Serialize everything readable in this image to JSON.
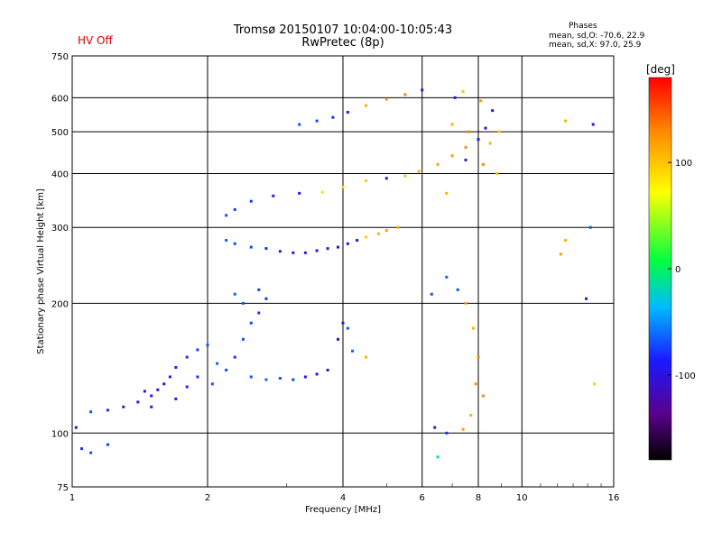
{
  "header": {
    "hv_status": "HV Off",
    "title_line1": "Tromsø 20150107 10:04:00-10:05:43",
    "title_line2": "RwPretec (8p)",
    "phases_title": "Phases",
    "phases_o": "mean, sd,O: -70.6, 22.9",
    "phases_x": "mean, sd,X:  97.0, 25.9"
  },
  "colorbar": {
    "unit": "[deg]",
    "ticks": [
      "100",
      "0",
      "-100"
    ],
    "tick_values": [
      100,
      0,
      -100
    ],
    "range": [
      -180,
      180
    ],
    "colors": [
      "#000000",
      "#5a008c",
      "#1a1aff",
      "#00bbff",
      "#00ff40",
      "#ffff00",
      "#ff8800",
      "#ff0000"
    ]
  },
  "chart_data": {
    "type": "scatter",
    "title": "Tromsø 20150107 10:04:00-10:05:43",
    "subtitle": "RwPretec (8p)",
    "xlabel": "Frequency [MHz]",
    "ylabel": "Stationary phase Virtual Height [km]",
    "xscale": "log",
    "yscale": "log",
    "xlim": [
      1,
      16
    ],
    "ylim": [
      75,
      750
    ],
    "xticks": [
      1,
      2,
      4,
      6,
      8,
      10,
      16
    ],
    "xtick_labels": [
      "1",
      "2",
      "4",
      "6",
      "8",
      "10",
      "16"
    ],
    "yticks": [
      75,
      100,
      200,
      300,
      400,
      500,
      600,
      750
    ],
    "ytick_labels": [
      "75",
      "100",
      "200",
      "300",
      "400",
      "500",
      "600",
      "750"
    ],
    "grid": true,
    "color_variable": "phase [deg]",
    "series": [
      {
        "points": [
          [
            1.02,
            103,
            -80
          ],
          [
            1.05,
            92,
            -70
          ],
          [
            1.1,
            90,
            -60
          ],
          [
            1.2,
            94,
            -65
          ],
          [
            1.1,
            112,
            -60
          ],
          [
            1.2,
            113,
            -70
          ],
          [
            1.3,
            115,
            -75
          ],
          [
            1.4,
            118,
            -80
          ],
          [
            1.5,
            122,
            -90
          ],
          [
            1.55,
            126,
            -95
          ],
          [
            1.6,
            130,
            -85
          ],
          [
            1.65,
            135,
            -80
          ],
          [
            1.7,
            142,
            -75
          ],
          [
            1.8,
            150,
            -70
          ],
          [
            1.9,
            156,
            -65
          ],
          [
            2.0,
            160,
            -60
          ],
          [
            1.45,
            125,
            -100
          ],
          [
            1.5,
            115,
            -90
          ],
          [
            1.7,
            120,
            -85
          ],
          [
            1.8,
            128,
            -80
          ],
          [
            1.9,
            135,
            -70
          ],
          [
            2.05,
            130,
            -60
          ],
          [
            2.1,
            145,
            -55
          ],
          [
            2.2,
            140,
            -60
          ],
          [
            2.3,
            150,
            -70
          ],
          [
            2.4,
            165,
            -60
          ],
          [
            2.5,
            180,
            -65
          ],
          [
            2.6,
            190,
            -70
          ],
          [
            2.3,
            210,
            -55
          ],
          [
            2.4,
            200,
            -60
          ],
          [
            2.6,
            215,
            -65
          ],
          [
            2.7,
            205,
            -70
          ],
          [
            2.5,
            135,
            -60
          ],
          [
            2.7,
            133,
            -55
          ],
          [
            2.9,
            134,
            -60
          ],
          [
            3.1,
            133,
            -65
          ],
          [
            3.3,
            135,
            -80
          ],
          [
            3.5,
            137,
            -90
          ],
          [
            3.7,
            140,
            -95
          ],
          [
            3.9,
            165,
            -100
          ],
          [
            4.0,
            180,
            -95
          ],
          [
            4.1,
            175,
            -60
          ],
          [
            4.2,
            155,
            -55
          ],
          [
            4.5,
            150,
            110
          ],
          [
            2.2,
            280,
            -55
          ],
          [
            2.3,
            275,
            -60
          ],
          [
            2.5,
            270,
            -65
          ],
          [
            2.7,
            268,
            -70
          ],
          [
            2.9,
            264,
            -75
          ],
          [
            3.1,
            262,
            -80
          ],
          [
            3.3,
            262,
            -85
          ],
          [
            3.5,
            265,
            -90
          ],
          [
            3.7,
            268,
            -95
          ],
          [
            3.9,
            270,
            -100
          ],
          [
            4.1,
            275,
            -95
          ],
          [
            4.3,
            280,
            -90
          ],
          [
            4.5,
            285,
            100
          ],
          [
            4.8,
            290,
            110
          ],
          [
            5.0,
            295,
            120
          ],
          [
            5.3,
            300,
            115
          ],
          [
            2.2,
            320,
            -60
          ],
          [
            2.3,
            330,
            -65
          ],
          [
            2.5,
            345,
            -70
          ],
          [
            2.8,
            355,
            -80
          ],
          [
            3.2,
            360,
            -85
          ],
          [
            3.6,
            362,
            90
          ],
          [
            4.0,
            372,
            95
          ],
          [
            4.5,
            385,
            100
          ],
          [
            5.0,
            390,
            -90
          ],
          [
            5.5,
            395,
            105
          ],
          [
            5.9,
            405,
            110
          ],
          [
            6.5,
            420,
            115
          ],
          [
            7.0,
            440,
            120
          ],
          [
            7.5,
            460,
            125
          ],
          [
            8.0,
            480,
            -90
          ],
          [
            8.5,
            470,
            110
          ],
          [
            7.5,
            430,
            -80
          ],
          [
            8.2,
            420,
            130
          ],
          [
            8.8,
            400,
            100
          ],
          [
            6.8,
            360,
            110
          ],
          [
            3.2,
            520,
            -60
          ],
          [
            3.5,
            530,
            -65
          ],
          [
            3.8,
            540,
            -70
          ],
          [
            4.1,
            555,
            -75
          ],
          [
            4.5,
            575,
            110
          ],
          [
            5.0,
            595,
            120
          ],
          [
            5.5,
            610,
            130
          ],
          [
            6.0,
            625,
            -90
          ],
          [
            7.1,
            600,
            -100
          ],
          [
            7.4,
            620,
            100
          ],
          [
            8.1,
            590,
            120
          ],
          [
            8.6,
            560,
            -80
          ],
          [
            7.0,
            520,
            110
          ],
          [
            7.6,
            500,
            130
          ],
          [
            8.3,
            510,
            -90
          ],
          [
            8.9,
            500,
            100
          ],
          [
            6.3,
            210,
            -60
          ],
          [
            6.8,
            230,
            -55
          ],
          [
            7.2,
            215,
            -60
          ],
          [
            7.5,
            200,
            120
          ],
          [
            7.8,
            175,
            110
          ],
          [
            8.0,
            150,
            130
          ],
          [
            7.9,
            130,
            125
          ],
          [
            7.7,
            110,
            110
          ],
          [
            6.4,
            103,
            -80
          ],
          [
            6.8,
            100,
            -70
          ],
          [
            7.4,
            102,
            120
          ],
          [
            8.2,
            122,
            130
          ],
          [
            6.5,
            88,
            0
          ],
          [
            12.2,
            260,
            120
          ],
          [
            12.5,
            280,
            110
          ],
          [
            13.9,
            205,
            -100
          ],
          [
            14.5,
            130,
            100
          ],
          [
            14.2,
            300,
            -60
          ],
          [
            14.4,
            520,
            -80
          ],
          [
            12.5,
            530,
            110
          ]
        ]
      }
    ]
  }
}
